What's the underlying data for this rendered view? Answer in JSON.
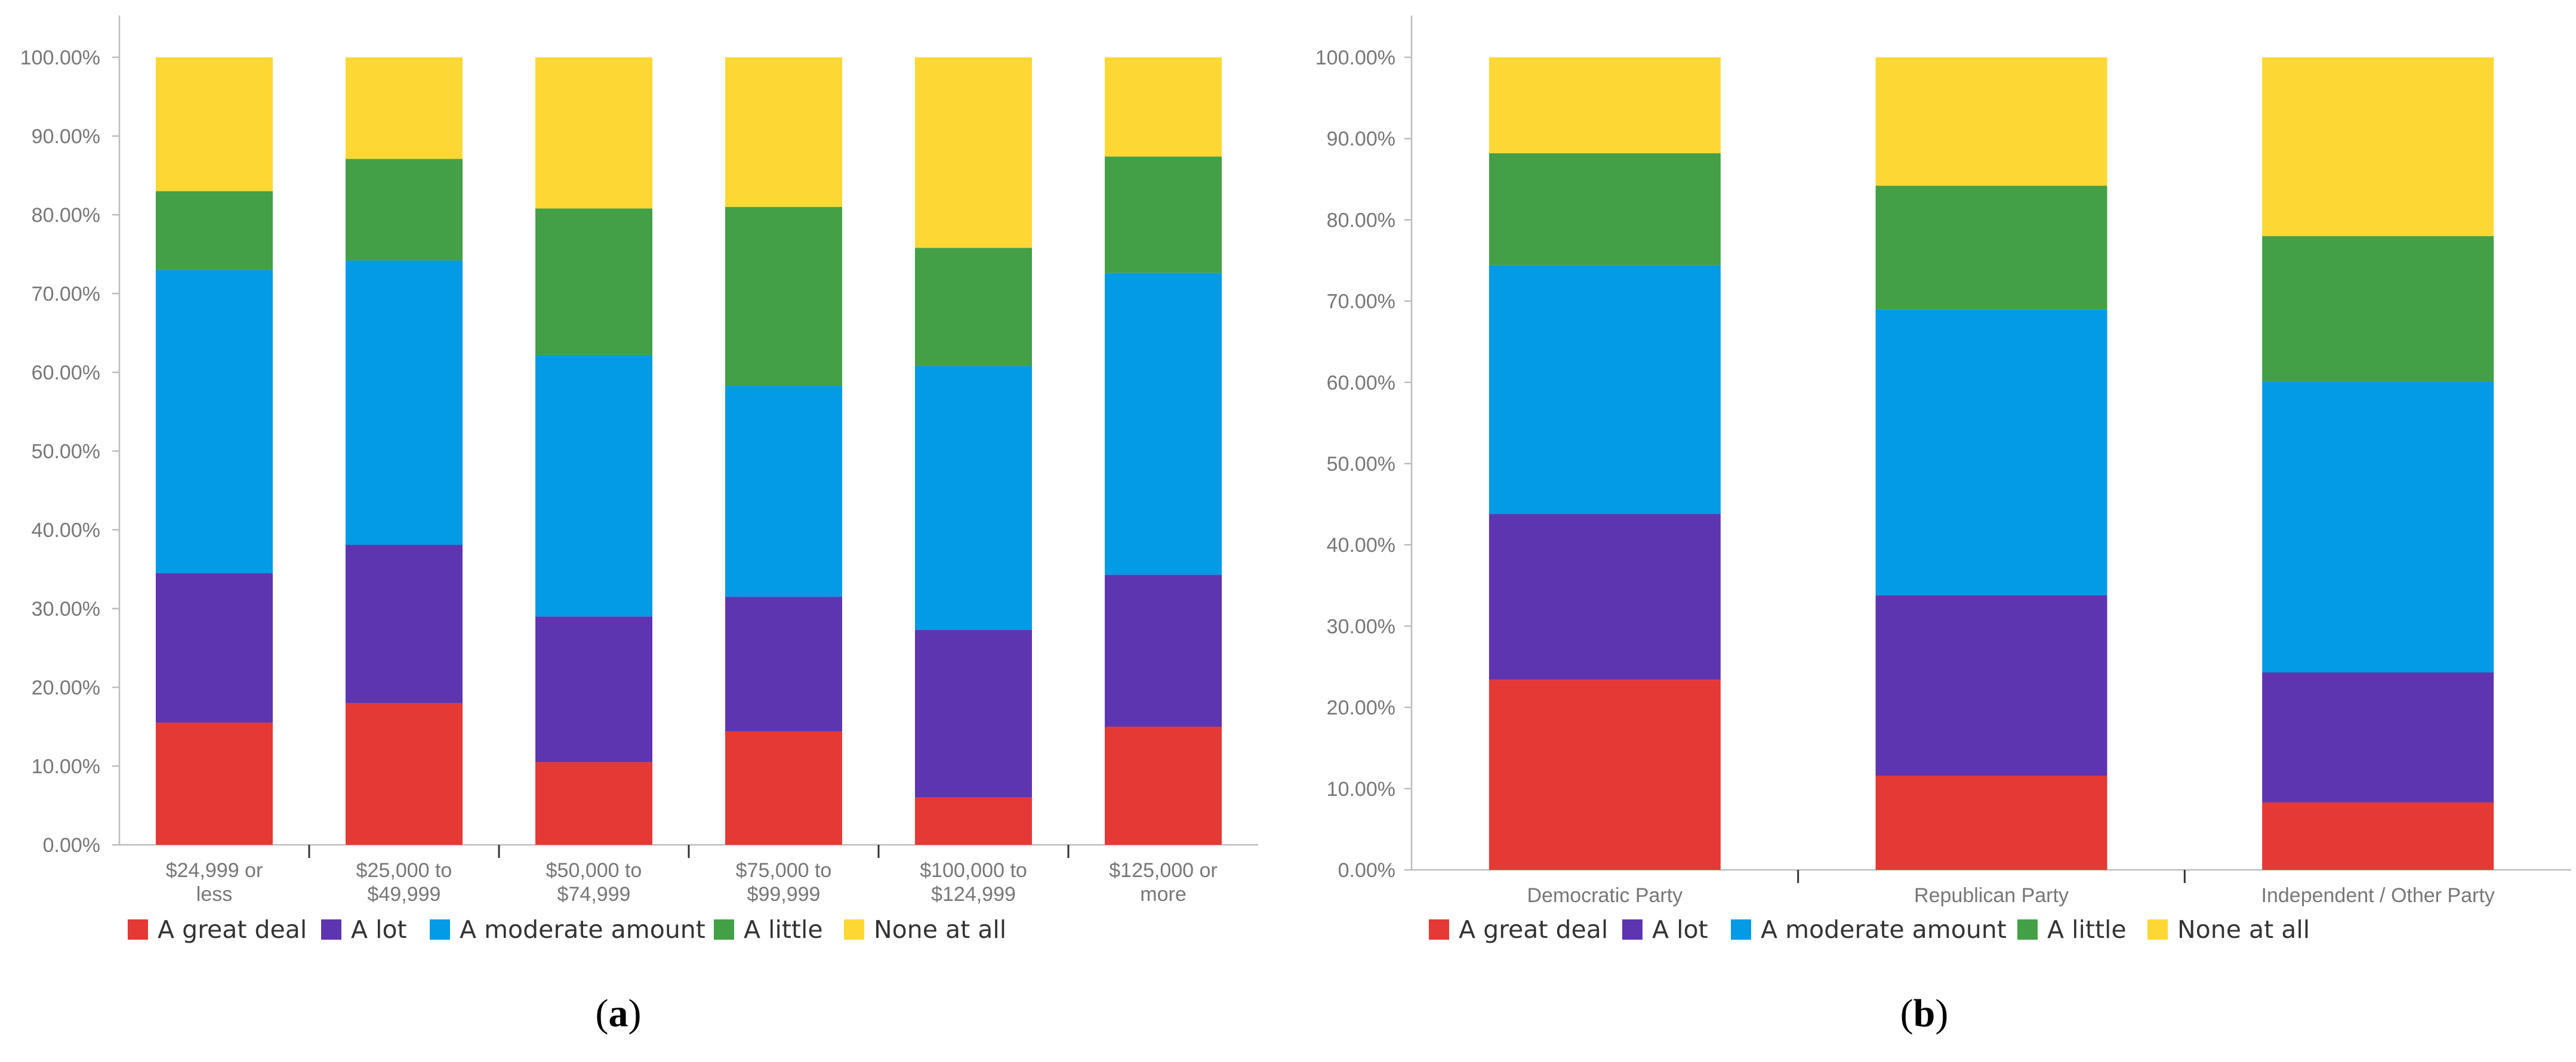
{
  "colors": {
    "A great deal": "#e53935",
    "A lot": "#5e35b1",
    "A moderate amount": "#039be5",
    "A little": "#43a047",
    "None at all": "#fdd835"
  },
  "chart_data": [
    {
      "type": "bar",
      "stacked": true,
      "panel_label": "a",
      "title": "",
      "xlabel": "",
      "ylabel": "",
      "ylim": [
        0,
        100
      ],
      "y_ticks": [
        "0.00%",
        "10.00%",
        "20.00%",
        "30.00%",
        "40.00%",
        "50.00%",
        "60.00%",
        "70.00%",
        "80.00%",
        "90.00%",
        "100.00%"
      ],
      "categories": [
        [
          "$24,999 or",
          "less"
        ],
        [
          "$25,000 to",
          "$49,999"
        ],
        [
          "$50,000 to",
          "$74,999"
        ],
        [
          "$75,000 to",
          "$99,999"
        ],
        [
          "$100,000 to",
          "$124,999"
        ],
        [
          "$125,000 or",
          "more"
        ]
      ],
      "series": [
        {
          "name": "A great deal",
          "values": [
            15.5,
            18.0,
            10.5,
            14.4,
            6.0,
            15.0
          ]
        },
        {
          "name": "A lot",
          "values": [
            19.0,
            20.1,
            18.5,
            17.1,
            21.3,
            19.3
          ]
        },
        {
          "name": "A moderate amount",
          "values": [
            38.5,
            36.1,
            33.2,
            26.8,
            33.5,
            38.3
          ]
        },
        {
          "name": "A little",
          "values": [
            10.0,
            12.9,
            18.6,
            22.7,
            15.0,
            14.8
          ]
        },
        {
          "name": "None at all",
          "values": [
            17.0,
            12.9,
            19.2,
            19.0,
            24.2,
            12.6
          ]
        }
      ],
      "legend": [
        "A great deal",
        "A lot",
        "A moderate amount",
        "A little",
        "None at all"
      ],
      "legend_position": "bottom"
    },
    {
      "type": "bar",
      "stacked": true,
      "panel_label": "b",
      "title": "",
      "xlabel": "",
      "ylabel": "",
      "ylim": [
        0,
        100
      ],
      "y_ticks": [
        "0.00%",
        "10.00%",
        "20.00%",
        "30.00%",
        "40.00%",
        "50.00%",
        "60.00%",
        "70.00%",
        "80.00%",
        "90.00%",
        "100.00%"
      ],
      "categories": [
        [
          "Democratic Party"
        ],
        [
          "Republican Party"
        ],
        [
          "Independent / Other Party"
        ]
      ],
      "series": [
        {
          "name": "A great deal",
          "values": [
            23.4,
            11.6,
            8.3
          ]
        },
        {
          "name": "A lot",
          "values": [
            20.4,
            22.2,
            16.0
          ]
        },
        {
          "name": "A moderate amount",
          "values": [
            30.6,
            35.2,
            35.8
          ]
        },
        {
          "name": "A little",
          "values": [
            13.8,
            15.2,
            17.9
          ]
        },
        {
          "name": "None at all",
          "values": [
            11.8,
            15.8,
            22.0
          ]
        }
      ],
      "legend": [
        "A great deal",
        "A lot",
        "A moderate amount",
        "A little",
        "None at all"
      ],
      "legend_position": "bottom"
    }
  ]
}
